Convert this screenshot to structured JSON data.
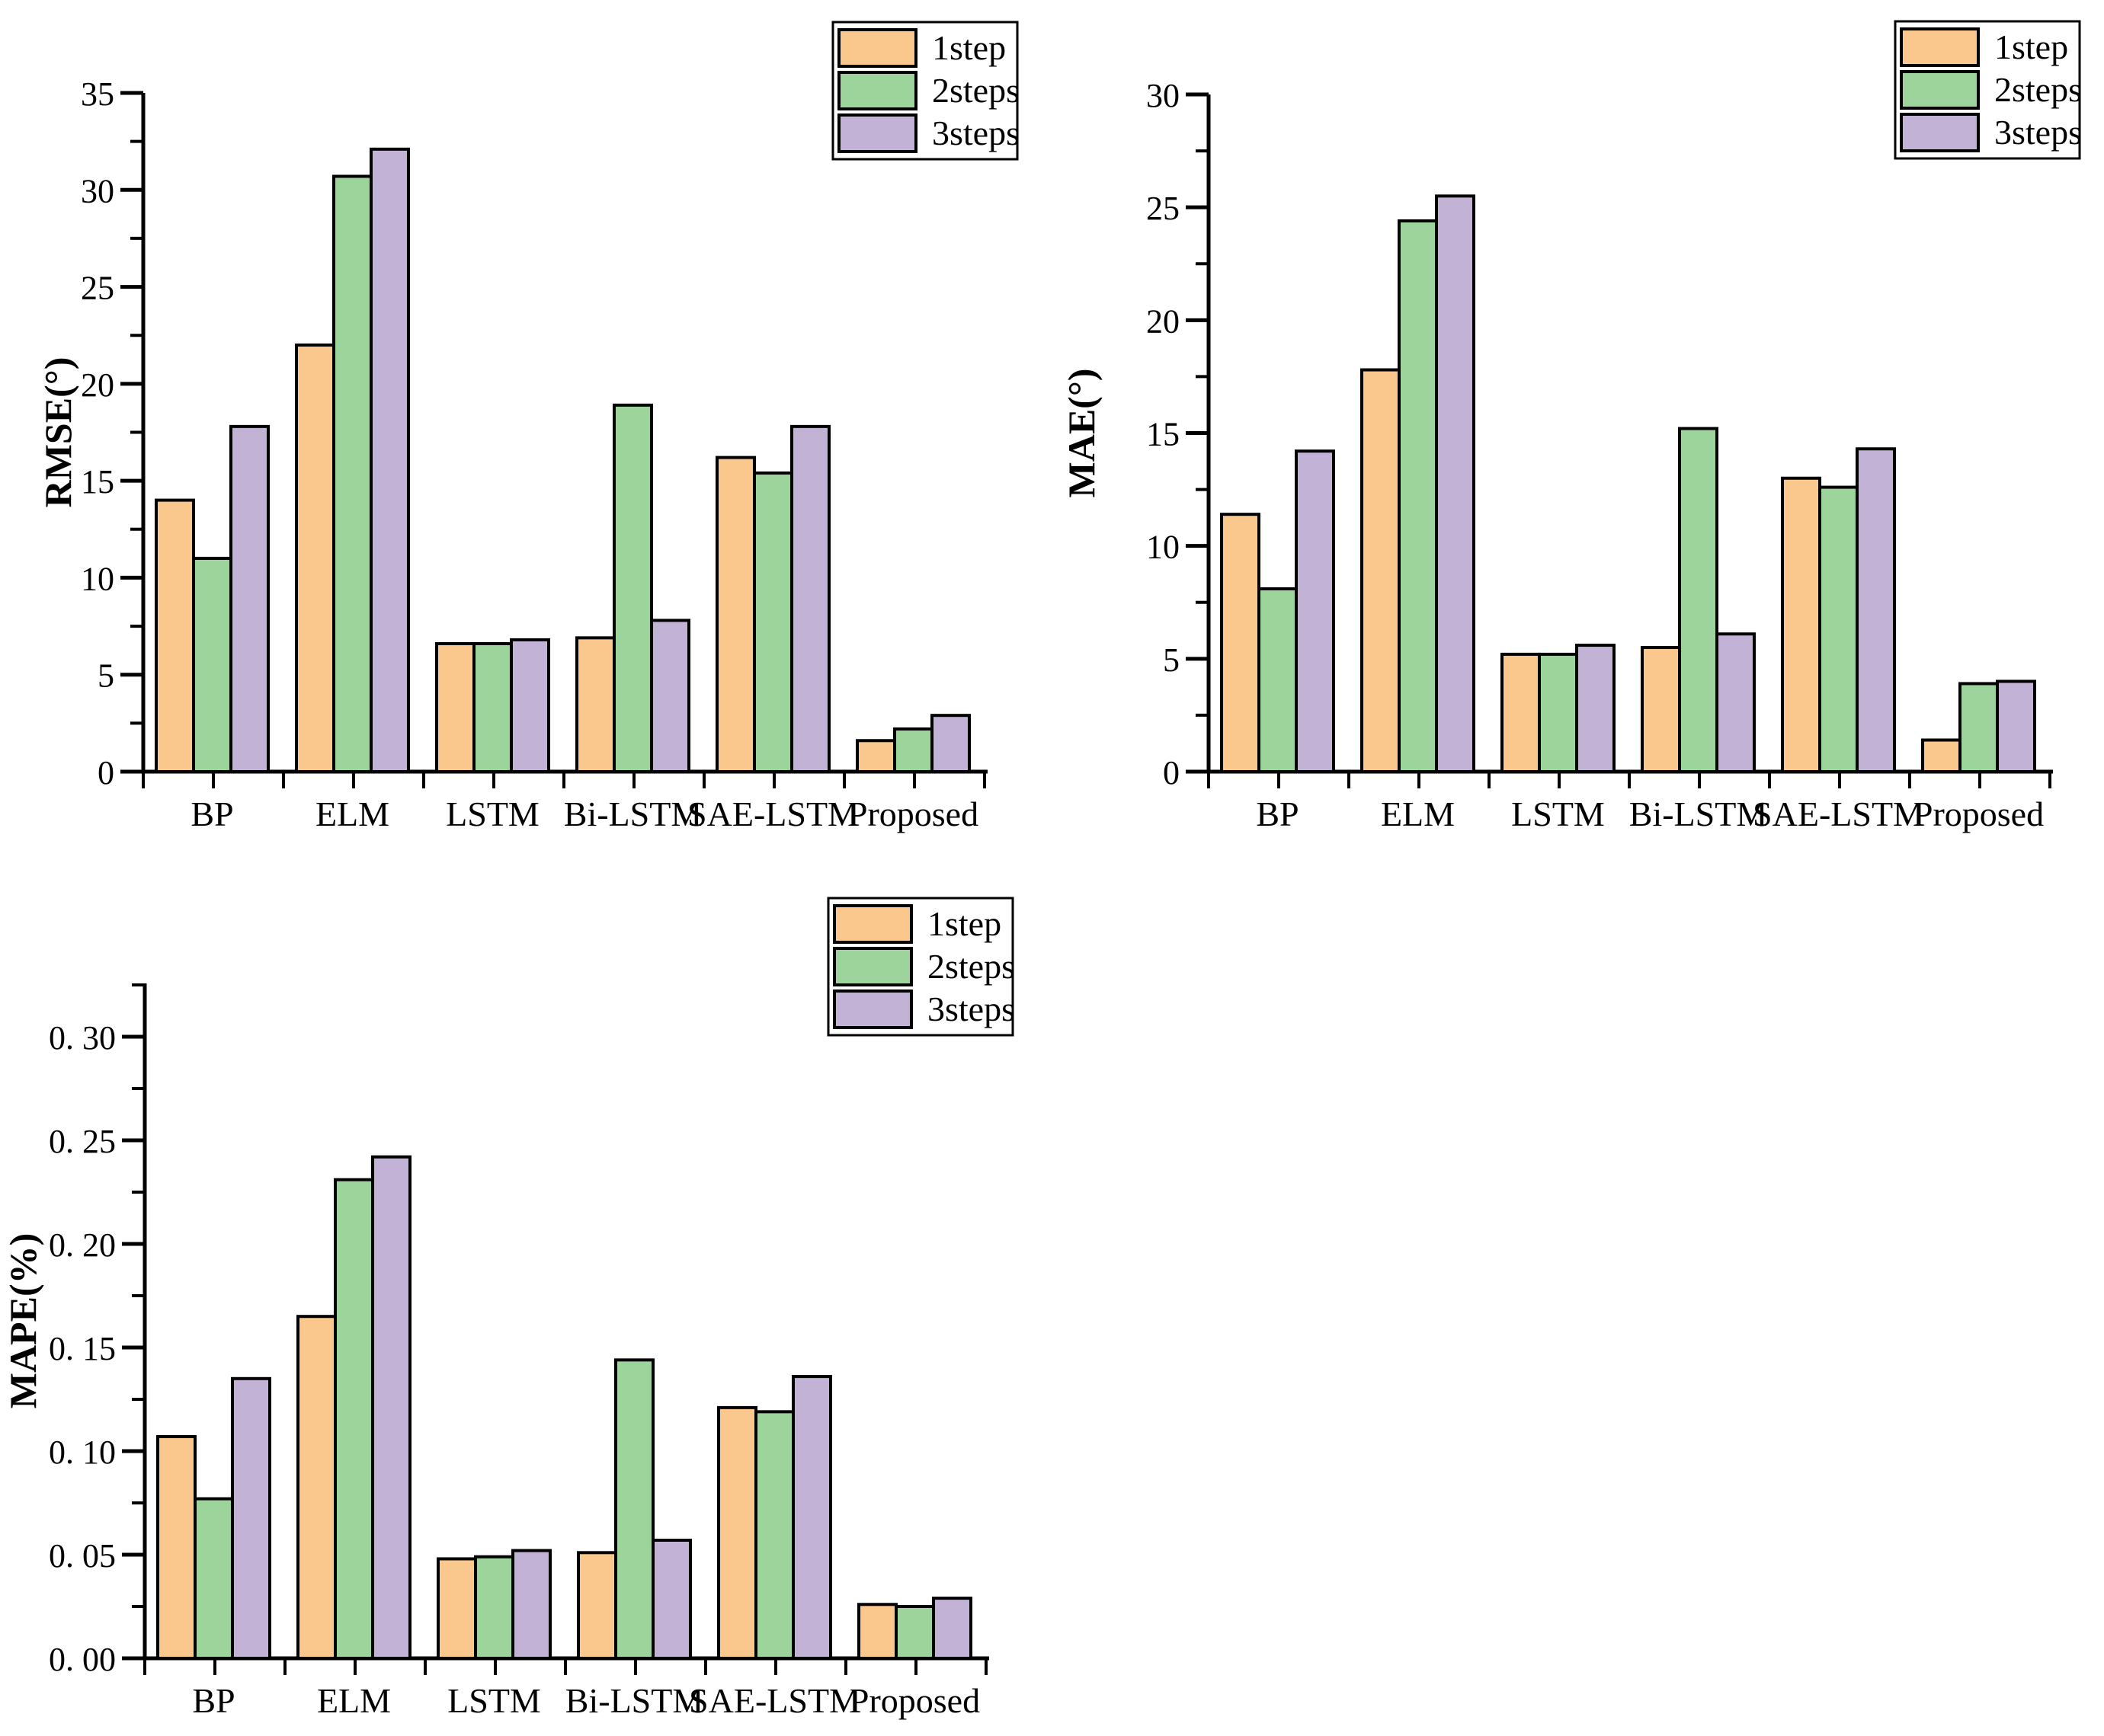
{
  "page": {
    "background": "#ffffff"
  },
  "colors": [
    "#FAC78D",
    "#9CD49B",
    "#C2B3D6"
  ],
  "outline_color": "#000000",
  "legend_labels": [
    "1step",
    "2steps",
    "3steps"
  ],
  "categories": [
    "BP",
    "ELM",
    "LSTM",
    "Bi-LSTM",
    "SAE-LSTM",
    "Proposed"
  ],
  "chart_data": [
    {
      "id": "rmse",
      "type": "bar",
      "title": "",
      "xlabel": "",
      "ylabel": "RMSE(°)",
      "categories": [
        "BP",
        "ELM",
        "LSTM",
        "Bi-LSTM",
        "SAE-LSTM",
        "Proposed"
      ],
      "series": [
        {
          "name": "1step",
          "values": [
            14.0,
            22.0,
            6.6,
            6.9,
            16.2,
            1.6
          ]
        },
        {
          "name": "2steps",
          "values": [
            11.0,
            30.7,
            6.6,
            18.9,
            15.4,
            2.2
          ]
        },
        {
          "name": "3steps",
          "values": [
            17.8,
            32.1,
            6.8,
            7.8,
            17.8,
            2.9
          ]
        }
      ],
      "ylim": [
        0,
        35
      ],
      "ytick_step": 5,
      "ytick_labels": [
        "0",
        "5",
        "10",
        "15",
        "20",
        "25",
        "30",
        "35"
      ],
      "grid": false,
      "legend_position": "top-right",
      "layout": {
        "axis_x": 188,
        "baseline_y": 1013,
        "major_top_y": 122,
        "top_y": 122,
        "title_x": 93,
        "legend_x": 1093,
        "legend_y": 29
      }
    },
    {
      "id": "mae",
      "type": "bar",
      "title": "",
      "xlabel": "",
      "ylabel": "MAE(°)",
      "categories": [
        "BP",
        "ELM",
        "LSTM",
        "Bi-LSTM",
        "SAE-LSTM",
        "Proposed"
      ],
      "series": [
        {
          "name": "1step",
          "values": [
            11.4,
            17.8,
            5.2,
            5.5,
            13.0,
            1.4
          ]
        },
        {
          "name": "2steps",
          "values": [
            8.1,
            24.4,
            5.2,
            15.2,
            12.6,
            3.9
          ]
        },
        {
          "name": "3steps",
          "values": [
            14.2,
            25.5,
            5.6,
            6.1,
            14.3,
            4.0
          ]
        }
      ],
      "ylim": [
        0,
        30
      ],
      "ytick_step": 5,
      "ytick_labels": [
        "0",
        "5",
        "10",
        "15",
        "20",
        "25",
        "30"
      ],
      "grid": false,
      "legend_position": "top-right",
      "layout": {
        "axis_x": 1586,
        "baseline_y": 1013,
        "major_top_y": 124,
        "top_y": 124,
        "title_x": 1436,
        "legend_x": 2487,
        "legend_y": 28
      }
    },
    {
      "id": "mape",
      "type": "bar",
      "title": "",
      "xlabel": "",
      "ylabel": "MAPE(%)",
      "categories": [
        "BP",
        "ELM",
        "LSTM",
        "Bi-LSTM",
        "SAE-LSTM",
        "Proposed"
      ],
      "series": [
        {
          "name": "1step",
          "values": [
            0.107,
            0.165,
            0.048,
            0.051,
            0.121,
            0.026
          ]
        },
        {
          "name": "2steps",
          "values": [
            0.077,
            0.231,
            0.049,
            0.144,
            0.119,
            0.025
          ]
        },
        {
          "name": "3steps",
          "values": [
            0.135,
            0.242,
            0.052,
            0.057,
            0.136,
            0.029
          ]
        }
      ],
      "ylim": [
        0,
        0.3
      ],
      "ytick_step": 0.05,
      "ytick_labels": [
        "0. 00",
        "0. 05",
        "0. 10",
        "0. 15",
        "0. 20",
        "0. 25",
        "0. 30"
      ],
      "grid": false,
      "legend_position": "top-right",
      "layout": {
        "axis_x": 190,
        "baseline_y": 2177,
        "major_top_y": 1361,
        "top_y": 1291,
        "title_x": 47,
        "legend_x": 1087,
        "legend_y": 1179
      }
    }
  ]
}
